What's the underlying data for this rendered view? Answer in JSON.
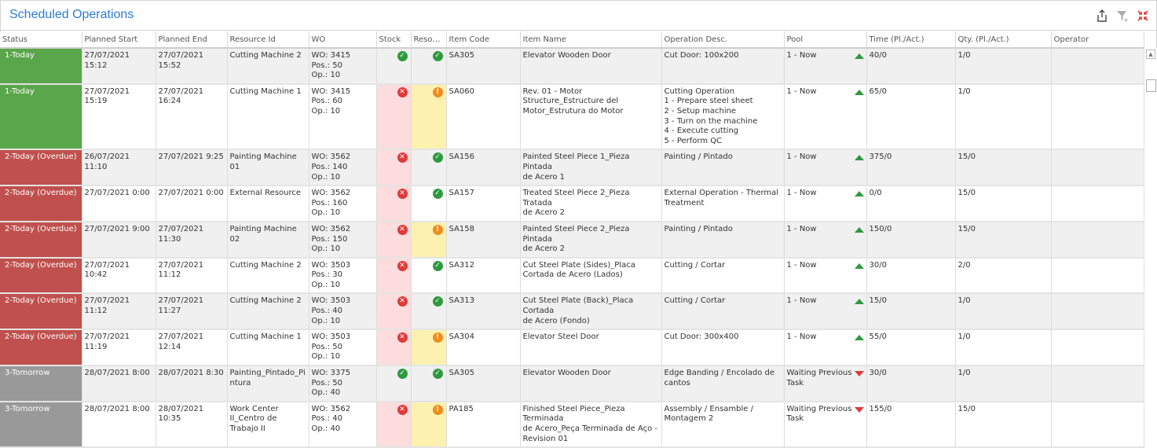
{
  "title": "Scheduled Operations",
  "toolbar": {
    "icons": [
      "export-icon",
      "clear-filter-icon",
      "collapse-icon"
    ]
  },
  "colors": {
    "today": "#5aa64a",
    "overdue": "#c0504d",
    "tomorrow": "#999999",
    "stock_missing_bg": "#fcdcdc",
    "resource_warning_bg": "#fdf1b0",
    "accent": "#2b7cd3"
  },
  "columns": [
    "Status",
    "Planned Start",
    "Planned End",
    "Resource Id",
    "WO",
    "Stock",
    "Resou...",
    "Item Code",
    "Item Name",
    "Operation Desc.",
    "Pool",
    "Time (Pl./Act.)",
    "Qty. (Pl./Act.)",
    "Operator"
  ],
  "rows": [
    {
      "status": "1-Today",
      "status_type": "today",
      "start": "27/07/2021 15:12",
      "end": "27/07/2021 15:52",
      "resource": "Cutting Machine 2",
      "wo": "WO: 3415\nPos.: 50\nOp.: 10",
      "stock": "ok",
      "res": "ok",
      "code": "SA305",
      "name": "Elevator Wooden Door",
      "op": "Cut Door: 100x200",
      "pool": "1 - Now",
      "pool_dir": "up",
      "time": "40/0",
      "qty": "1/0",
      "operator": ""
    },
    {
      "status": "1-Today",
      "status_type": "today",
      "start": "27/07/2021 15:19",
      "end": "27/07/2021 16:24",
      "resource": "Cutting Machine 1",
      "wo": "WO: 3415\nPos.: 60\nOp.: 10",
      "stock": "err",
      "res": "warn",
      "code": "SA060",
      "name": "Rev. 01 - Motor\nStructure_Estructure del\nMotor_Estrutura do Motor",
      "op": "Cutting Operation\n1 - Prepare steel sheet\n2 - Setup machine\n3 - Turn on the machine\n4 - Execute cutting\n5 - Perform QC",
      "pool": "1 - Now",
      "pool_dir": "up",
      "time": "65/0",
      "qty": "1/0",
      "operator": ""
    },
    {
      "status": "2-Today (Overdue)",
      "status_type": "overdue",
      "start": "26/07/2021 11:10",
      "end": "27/07/2021 9:25",
      "resource": "Painting Machine 01",
      "wo": "WO: 3562\nPos.: 140\nOp.: 10",
      "stock": "err",
      "res": "ok",
      "code": "SA156",
      "name": "Painted Steel Piece 1_Pieza Pintada\nde Acero 1",
      "op": "Painting / Pintado",
      "pool": "1 - Now",
      "pool_dir": "up",
      "time": "375/0",
      "qty": "15/0",
      "operator": ""
    },
    {
      "status": "2-Today (Overdue)",
      "status_type": "overdue",
      "start": "27/07/2021 0:00",
      "end": "27/07/2021 0:00",
      "resource": "External Resource",
      "wo": "WO: 3562\nPos.: 160\nOp.: 10",
      "stock": "err",
      "res": "ok",
      "code": "SA157",
      "name": "Treated Steel Piece 2_Pieza Tratada\nde Acero 2",
      "op": "External Operation - Thermal\nTreatment",
      "pool": "1 - Now",
      "pool_dir": "up",
      "time": "0/0",
      "qty": "15/0",
      "operator": ""
    },
    {
      "status": "2-Today (Overdue)",
      "status_type": "overdue",
      "start": "27/07/2021 9:00",
      "end": "27/07/2021 11:30",
      "resource": "Painting Machine 02",
      "wo": "WO: 3562\nPos.: 150\nOp.: 10",
      "stock": "err",
      "res": "warn",
      "code": "SA158",
      "name": "Painted Steel Piece 2_Pieza Pintada\nde Acero 2",
      "op": "Painting / Pintado",
      "pool": "1 - Now",
      "pool_dir": "up",
      "time": "150/0",
      "qty": "15/0",
      "operator": ""
    },
    {
      "status": "2-Today (Overdue)",
      "status_type": "overdue",
      "start": "27/07/2021 10:42",
      "end": "27/07/2021 11:12",
      "resource": "Cutting Machine 2",
      "wo": "WO: 3503\nPos.: 30\nOp.: 10",
      "stock": "err",
      "res": "ok",
      "code": "SA312",
      "name": "Cut Steel Plate (Sides)_Placa\nCortada de Acero (Lados)",
      "op": "Cutting / Cortar",
      "pool": "1 - Now",
      "pool_dir": "up",
      "time": "30/0",
      "qty": "2/0",
      "operator": ""
    },
    {
      "status": "2-Today (Overdue)",
      "status_type": "overdue",
      "start": "27/07/2021 11:12",
      "end": "27/07/2021 11:27",
      "resource": "Cutting Machine 2",
      "wo": "WO: 3503\nPos.: 40\nOp.: 10",
      "stock": "err",
      "res": "ok",
      "code": "SA313",
      "name": "Cut Steel Plate (Back)_Placa Cortada\nde Acero (Fondo)",
      "op": "Cutting / Cortar",
      "pool": "1 - Now",
      "pool_dir": "up",
      "time": "15/0",
      "qty": "1/0",
      "operator": ""
    },
    {
      "status": "2-Today (Overdue)",
      "status_type": "overdue",
      "start": "27/07/2021 11:19",
      "end": "27/07/2021 12:14",
      "resource": "Cutting Machine 1",
      "wo": "WO: 3503\nPos.: 50\nOp.: 10",
      "stock": "err",
      "res": "warn",
      "code": "SA304",
      "name": "Elevator Steel Door",
      "op": "Cut Door: 300x400",
      "pool": "1 - Now",
      "pool_dir": "up",
      "time": "55/0",
      "qty": "1/0",
      "operator": ""
    },
    {
      "status": "3-Tomorrow",
      "status_type": "tomorrow",
      "start": "28/07/2021 8:00",
      "end": "28/07/2021 8:30",
      "resource": "Painting_Pintado_Pi\nntura",
      "wo": "WO: 3375\nPos.: 50\nOp.: 40",
      "stock": "ok",
      "res": "ok",
      "code": "SA305",
      "name": "Elevator Wooden Door",
      "op": "Edge Banding / Encolado de\ncantos",
      "pool": "Waiting Previous\nTask",
      "pool_dir": "down",
      "time": "30/0",
      "qty": "1/0",
      "operator": ""
    },
    {
      "status": "3-Tomorrow",
      "status_type": "tomorrow",
      "start": "28/07/2021 8:00",
      "end": "28/07/2021 10:35",
      "resource": "Work Center\nII_Centro de\nTrabajo II",
      "wo": "WO: 3562\nPos.: 40\nOp.: 40",
      "stock": "err",
      "res": "warn",
      "code": "PA185",
      "name": "Finished Steel Piece_Pieza Terminada\nde Acero_Peça Terminada de Aço -\nRevision 01",
      "op": "Assembly / Ensamble /\nMontagem 2",
      "pool": "Waiting Previous\nTask",
      "pool_dir": "down",
      "time": "155/0",
      "qty": "15/0",
      "operator": ""
    }
  ]
}
